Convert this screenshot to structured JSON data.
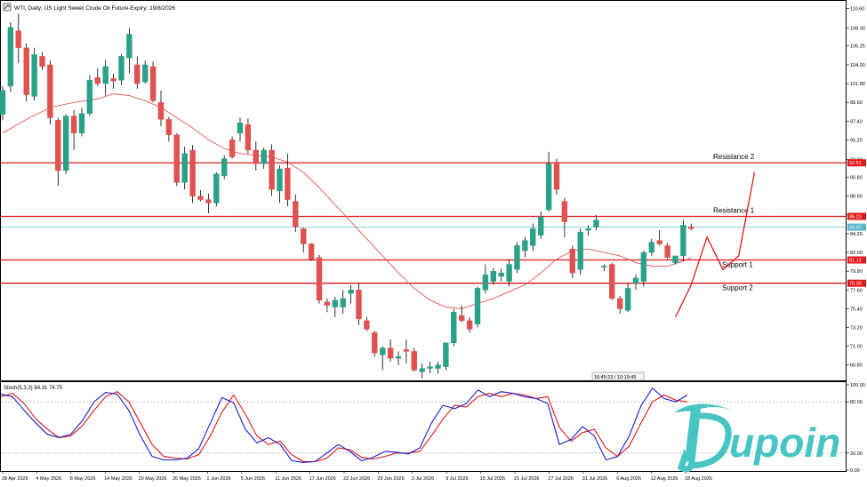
{
  "window": {
    "title": "WTI, Daily:  US Light Sweet Crude Oil Future-Expiry: 19/8/2026",
    "crosshair_readout": "16:45:23 / 10:19:45"
  },
  "brand": {
    "watermark_text": "Dupoin",
    "color": "#47C4C4"
  },
  "colors": {
    "bull": "#2AA189",
    "bear": "#E0524F",
    "ma": "#E85650",
    "level_line": "#E0181A",
    "current_price_line": "#7FCAD8",
    "stoch_main": "#1C1CCF",
    "stoch_signal": "#E01818"
  },
  "price_axis": {
    "ticks": [
      "110.60",
      "108.30",
      "106.25",
      "104.00",
      "101.80",
      "99.60",
      "97.40",
      "95.20",
      "92.90",
      "90.80",
      "88.60",
      "86.40",
      "84.20",
      "82.00",
      "79.80",
      "77.60",
      "75.40",
      "73.20",
      "71.00",
      "68.80"
    ],
    "badges": [
      {
        "label": "92.51",
        "bg": "#E0181A"
      },
      {
        "label": "86.23",
        "bg": "#E0181A"
      },
      {
        "label": "84.97",
        "bg": "#5AB7C8"
      },
      {
        "label": "81.12",
        "bg": "#E0181A"
      },
      {
        "label": "78.39",
        "bg": "#E0181A"
      }
    ]
  },
  "levels": [
    {
      "name": "Resistance 2",
      "price": 92.51
    },
    {
      "name": "Resistance 1",
      "price": 86.23
    },
    {
      "name": "Support 1",
      "price": 81.12
    },
    {
      "name": "Support 2",
      "price": 78.39
    }
  ],
  "current_price": 84.97,
  "time_axis": [
    "28 Apr 2026",
    "4 May 2026",
    "8 May 2026",
    "14 May 2026",
    "20 May 2026",
    "26 May 2026",
    "1 Jun 2026",
    "5 Jun 2026",
    "11 Jun 2026",
    "17 Jun 2026",
    "23 Jun 2026",
    "29 Jun 2026",
    "3 Jul 2026",
    "9 Jul 2026",
    "15 Jul 2026",
    "21 Jul 2026",
    "27 Jul 2026",
    "31 Jul 2026",
    "6 Aug 2026",
    "12 Aug 2026",
    "18 Aug 2026"
  ],
  "indicator": {
    "label": "Stoch(5,3,3) 84.31 74.75",
    "ticks": [
      "100.00",
      "80.00",
      "20.00",
      "0.00"
    ],
    "main_value": 84.31,
    "signal_value": 74.75
  },
  "chart_data": {
    "type": "candlestick",
    "title": "WTI, Daily:  US Light Sweet Crude Oil Future-Expiry: 19/8/2026",
    "ylim": [
      67.0,
      111.5
    ],
    "ohlc": [
      [
        98.2,
        101.5,
        97.5,
        101.0
      ],
      [
        101.5,
        109.0,
        100.8,
        108.4
      ],
      [
        108.0,
        110.0,
        104.2,
        106.0
      ],
      [
        106.0,
        106.5,
        99.7,
        100.5
      ],
      [
        100.3,
        106.0,
        99.8,
        105.2
      ],
      [
        105.0,
        105.5,
        103.4,
        103.8
      ],
      [
        104.0,
        104.5,
        97.0,
        97.8
      ],
      [
        97.5,
        97.8,
        89.8,
        91.6
      ],
      [
        91.6,
        98.2,
        91.2,
        98.0
      ],
      [
        98.0,
        98.7,
        94.0,
        96.0
      ],
      [
        96.0,
        99.0,
        95.6,
        98.3
      ],
      [
        98.3,
        102.8,
        98.0,
        102.2
      ],
      [
        102.5,
        103.6,
        101.5,
        101.8
      ],
      [
        101.8,
        104.6,
        100.4,
        103.8
      ],
      [
        102.4,
        103.0,
        101.2,
        102.1
      ],
      [
        102.2,
        105.3,
        101.6,
        105.0
      ],
      [
        104.8,
        108.3,
        103.0,
        107.6
      ],
      [
        104.0,
        105.0,
        101.2,
        101.8
      ],
      [
        102.0,
        104.5,
        101.8,
        104.0
      ],
      [
        103.8,
        104.4,
        99.6,
        99.8
      ],
      [
        99.6,
        101.0,
        96.8,
        97.6
      ],
      [
        97.6,
        97.9,
        95.0,
        95.8
      ],
      [
        95.8,
        96.0,
        89.8,
        90.2
      ],
      [
        90.2,
        94.4,
        89.4,
        93.6
      ],
      [
        94.0,
        94.6,
        87.8,
        88.6
      ],
      [
        88.6,
        89.3,
        88.0,
        88.2
      ],
      [
        88.2,
        88.9,
        86.6,
        87.8
      ],
      [
        87.8,
        91.4,
        87.4,
        91.2
      ],
      [
        91.0,
        93.4,
        90.6,
        93.0
      ],
      [
        95.2,
        95.6,
        93.0,
        93.2
      ],
      [
        96.0,
        97.8,
        95.0,
        97.2
      ],
      [
        97.0,
        97.7,
        93.6,
        94.0
      ],
      [
        94.0,
        95.0,
        91.6,
        92.4
      ],
      [
        92.4,
        94.3,
        91.8,
        94.0
      ],
      [
        94.0,
        94.7,
        88.6,
        89.4
      ],
      [
        89.2,
        92.2,
        87.8,
        91.8
      ],
      [
        91.9,
        93.6,
        87.4,
        88.2
      ],
      [
        88.0,
        88.8,
        84.4,
        85.0
      ],
      [
        84.8,
        84.9,
        82.0,
        83.0
      ],
      [
        83.0,
        83.1,
        81.0,
        81.2
      ],
      [
        81.4,
        81.7,
        76.0,
        76.4
      ],
      [
        76.2,
        76.6,
        75.0,
        75.8
      ],
      [
        75.6,
        76.8,
        74.4,
        76.4
      ],
      [
        75.6,
        77.6,
        74.8,
        76.6
      ],
      [
        77.2,
        78.2,
        76.0,
        77.6
      ],
      [
        77.6,
        78.4,
        73.5,
        74.2
      ],
      [
        74.0,
        74.4,
        72.8,
        73.0
      ],
      [
        72.6,
        72.8,
        69.8,
        70.2
      ],
      [
        70.0,
        71.0,
        68.2,
        70.8
      ],
      [
        70.8,
        71.8,
        69.2,
        69.6
      ],
      [
        69.6,
        70.4,
        68.8,
        69.8
      ],
      [
        70.6,
        71.8,
        69.0,
        70.4
      ],
      [
        70.4,
        70.8,
        68.0,
        68.2
      ],
      [
        68.0,
        69.0,
        67.2,
        68.4
      ],
      [
        68.4,
        69.2,
        67.8,
        68.6
      ],
      [
        68.4,
        69.2,
        67.8,
        68.8
      ],
      [
        68.6,
        71.4,
        68.2,
        71.4
      ],
      [
        71.4,
        75.4,
        71.0,
        75.0
      ],
      [
        74.6,
        75.8,
        73.8,
        74.0
      ],
      [
        74.0,
        74.4,
        72.6,
        73.0
      ],
      [
        73.6,
        78.0,
        73.2,
        77.8
      ],
      [
        77.6,
        80.6,
        77.2,
        79.4
      ],
      [
        78.6,
        80.2,
        78.2,
        79.8
      ],
      [
        79.2,
        80.1,
        78.6,
        79.6
      ],
      [
        78.6,
        81.2,
        78.0,
        80.6
      ],
      [
        80.0,
        83.2,
        79.6,
        82.8
      ],
      [
        82.2,
        83.8,
        81.4,
        83.4
      ],
      [
        82.8,
        85.4,
        82.2,
        84.8
      ],
      [
        84.0,
        86.8,
        83.6,
        86.2
      ],
      [
        87.0,
        93.8,
        86.8,
        92.4
      ],
      [
        92.6,
        93.0,
        88.8,
        89.4
      ],
      [
        88.0,
        88.4,
        83.8,
        85.6
      ],
      [
        82.4,
        82.8,
        79.0,
        79.6
      ],
      [
        80.0,
        84.8,
        79.4,
        84.4
      ],
      [
        84.6,
        85.2,
        84.0,
        84.8
      ],
      [
        85.0,
        86.4,
        84.6,
        85.8
      ],
      [
        80.4,
        80.6,
        79.8,
        80.4
      ],
      [
        80.6,
        80.8,
        76.4,
        76.6
      ],
      [
        76.6,
        76.9,
        74.8,
        75.4
      ],
      [
        75.2,
        78.4,
        75.0,
        77.8
      ],
      [
        78.4,
        79.4,
        77.6,
        79.0
      ],
      [
        78.6,
        82.2,
        78.0,
        82.0
      ],
      [
        82.0,
        83.6,
        81.6,
        83.2
      ],
      [
        83.4,
        84.6,
        82.8,
        83.0
      ],
      [
        82.8,
        83.1,
        81.2,
        81.4
      ],
      [
        80.8,
        81.6,
        80.6,
        81.6
      ],
      [
        81.6,
        85.8,
        81.0,
        85.2
      ],
      [
        85.0,
        85.4,
        84.6,
        84.8
      ]
    ],
    "moving_average": [
      [
        0,
        96.0
      ],
      [
        3,
        97.6
      ],
      [
        6,
        99.0
      ],
      [
        9,
        99.6
      ],
      [
        12,
        100.0
      ],
      [
        14,
        100.6
      ],
      [
        16,
        100.4
      ],
      [
        18,
        99.8
      ],
      [
        20,
        99.0
      ],
      [
        22,
        97.8
      ],
      [
        24,
        96.6
      ],
      [
        26,
        95.2
      ],
      [
        28,
        94.2
      ],
      [
        30,
        93.6
      ],
      [
        32,
        93.4
      ],
      [
        34,
        93.2
      ],
      [
        36,
        92.6
      ],
      [
        38,
        91.4
      ],
      [
        40,
        89.6
      ],
      [
        42,
        87.6
      ],
      [
        44,
        85.6
      ],
      [
        46,
        83.6
      ],
      [
        48,
        81.6
      ],
      [
        50,
        79.6
      ],
      [
        52,
        77.8
      ],
      [
        54,
        76.4
      ],
      [
        56,
        75.6
      ],
      [
        58,
        75.4
      ],
      [
        60,
        76.0
      ],
      [
        62,
        76.6
      ],
      [
        64,
        77.4
      ],
      [
        66,
        78.2
      ],
      [
        68,
        79.6
      ],
      [
        70,
        81.2
      ],
      [
        72,
        82.2
      ],
      [
        74,
        82.4
      ],
      [
        76,
        82.0
      ],
      [
        78,
        81.6
      ],
      [
        80,
        80.8
      ],
      [
        82,
        80.4
      ],
      [
        84,
        80.4
      ],
      [
        86,
        81.0
      ],
      [
        87,
        81.4
      ]
    ],
    "stochastic": {
      "main": [
        [
          0,
          89
        ],
        [
          2,
          86
        ],
        [
          4,
          70
        ],
        [
          6,
          55
        ],
        [
          8,
          42
        ],
        [
          10,
          38
        ],
        [
          12,
          42
        ],
        [
          14,
          58
        ],
        [
          16,
          80
        ],
        [
          18,
          91
        ],
        [
          20,
          89
        ],
        [
          22,
          70
        ],
        [
          24,
          40
        ],
        [
          26,
          16
        ],
        [
          28,
          12
        ],
        [
          30,
          12
        ],
        [
          32,
          14
        ],
        [
          34,
          25
        ],
        [
          36,
          55
        ],
        [
          38,
          85
        ],
        [
          40,
          79
        ],
        [
          42,
          48
        ],
        [
          44,
          32
        ],
        [
          46,
          38
        ],
        [
          48,
          30
        ],
        [
          50,
          11
        ],
        [
          52,
          9
        ],
        [
          54,
          10
        ],
        [
          56,
          20
        ],
        [
          58,
          30
        ],
        [
          60,
          22
        ],
        [
          62,
          11
        ],
        [
          64,
          15
        ],
        [
          66,
          22
        ],
        [
          68,
          21
        ],
        [
          70,
          19
        ],
        [
          72,
          26
        ],
        [
          74,
          55
        ],
        [
          76,
          76
        ],
        [
          78,
          72
        ],
        [
          80,
          78
        ],
        [
          82,
          94
        ],
        [
          84,
          86
        ],
        [
          86,
          92
        ],
        [
          88,
          90
        ],
        [
          90,
          86
        ],
        [
          92,
          84
        ],
        [
          94,
          78
        ],
        [
          96,
          30
        ],
        [
          98,
          36
        ],
        [
          100,
          51
        ],
        [
          102,
          40
        ],
        [
          104,
          12
        ],
        [
          106,
          16
        ],
        [
          108,
          40
        ],
        [
          110,
          75
        ],
        [
          112,
          96
        ],
        [
          114,
          84
        ],
        [
          116,
          80
        ],
        [
          118,
          88
        ]
      ],
      "signal": [
        [
          0,
          86
        ],
        [
          2,
          90
        ],
        [
          4,
          78
        ],
        [
          6,
          60
        ],
        [
          8,
          48
        ],
        [
          10,
          38
        ],
        [
          12,
          40
        ],
        [
          14,
          52
        ],
        [
          16,
          70
        ],
        [
          18,
          86
        ],
        [
          20,
          92
        ],
        [
          22,
          80
        ],
        [
          24,
          55
        ],
        [
          26,
          30
        ],
        [
          28,
          16
        ],
        [
          30,
          14
        ],
        [
          32,
          13
        ],
        [
          34,
          18
        ],
        [
          36,
          40
        ],
        [
          38,
          68
        ],
        [
          40,
          88
        ],
        [
          42,
          66
        ],
        [
          44,
          40
        ],
        [
          46,
          30
        ],
        [
          48,
          34
        ],
        [
          50,
          18
        ],
        [
          52,
          10
        ],
        [
          54,
          10
        ],
        [
          56,
          14
        ],
        [
          58,
          26
        ],
        [
          60,
          24
        ],
        [
          62,
          15
        ],
        [
          64,
          13
        ],
        [
          66,
          16
        ],
        [
          68,
          20
        ],
        [
          70,
          20
        ],
        [
          72,
          22
        ],
        [
          74,
          40
        ],
        [
          76,
          60
        ],
        [
          78,
          76
        ],
        [
          80,
          74
        ],
        [
          82,
          86
        ],
        [
          84,
          90
        ],
        [
          86,
          86
        ],
        [
          88,
          90
        ],
        [
          90,
          88
        ],
        [
          92,
          84
        ],
        [
          94,
          86
        ],
        [
          96,
          50
        ],
        [
          98,
          34
        ],
        [
          100,
          44
        ],
        [
          102,
          48
        ],
        [
          104,
          26
        ],
        [
          106,
          16
        ],
        [
          108,
          28
        ],
        [
          110,
          55
        ],
        [
          112,
          80
        ],
        [
          114,
          88
        ],
        [
          116,
          82
        ],
        [
          118,
          80
        ]
      ]
    },
    "drawn_path": [
      [
        85,
        74.4
      ],
      [
        87,
        78.2
      ],
      [
        89,
        83.8
      ],
      [
        91,
        80.0
      ],
      [
        93,
        81.6
      ],
      [
        95,
        91.4
      ]
    ]
  }
}
